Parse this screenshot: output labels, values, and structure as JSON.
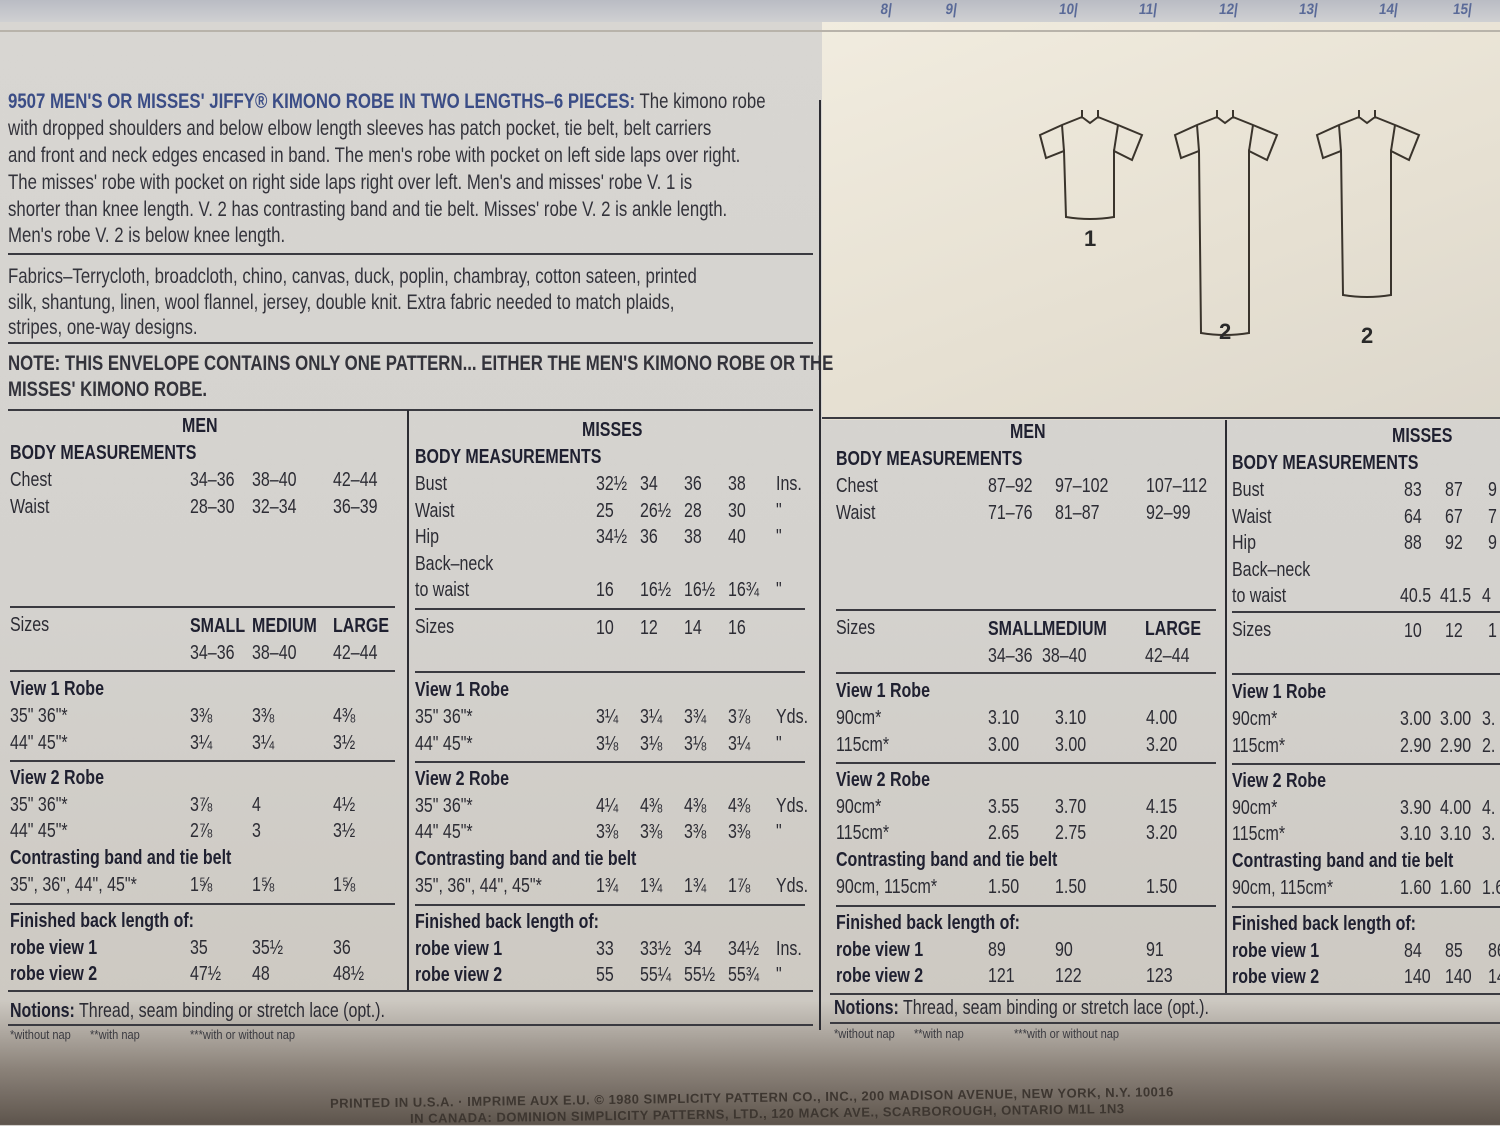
{
  "ruler": [
    "8",
    "9",
    "10",
    "11",
    "12",
    "13",
    "14",
    "15"
  ],
  "description": {
    "title": "9507 MEN'S OR MISSES' JIFFY® KIMONO ROBE IN TWO LENGTHS–6 PIECES:",
    "lines": [
      " The kimono robe",
      "with dropped shoulders and below elbow length sleeves has patch pocket, tie belt, belt carriers",
      "and front and neck edges encased in band. The men's robe with pocket on left side laps over right.",
      "The misses' robe with pocket on right side laps right over left. Men's and misses' robe V. 1 is",
      "shorter than knee length. V. 2 has contrasting band and tie belt. Misses' robe V. 2 is ankle length.",
      "Men's robe V. 2 is below knee length."
    ]
  },
  "fabrics": {
    "lines": [
      "Fabrics–Terrycloth, broadcloth, chino, canvas, duck, poplin, chambray, cotton sateen, printed",
      "silk, shantung, linen, wool flannel, jersey, double knit. Extra fabric needed to match plaids,",
      "stripes, one-way designs."
    ]
  },
  "note": {
    "lines": [
      "NOTE: THIS ENVELOPE CONTAINS ONLY ONE PATTERN... EITHER THE MEN'S KIMONO ROBE OR THE",
      "MISSES' KIMONO ROBE."
    ]
  },
  "views": [
    {
      "label": "1",
      "type": "short"
    },
    {
      "label": "2",
      "type": "long"
    },
    {
      "label": "2",
      "type": "ankle"
    }
  ],
  "tables": {
    "men_in": {
      "title": "MEN",
      "body": {
        "heading": "BODY MEASUREMENTS",
        "rows": [
          {
            "label": "Chest",
            "values": [
              "34–36",
              "38–40",
              "42–44"
            ]
          },
          {
            "label": "Waist",
            "values": [
              "28–30",
              "32–34",
              "36–39"
            ]
          }
        ]
      },
      "sizes": {
        "label": "Sizes",
        "rows": [
          [
            "SMALL",
            "MEDIUM",
            "LARGE"
          ],
          [
            "34–36",
            "38–40",
            "42–44"
          ]
        ]
      },
      "view1": {
        "heading": "View 1 Robe",
        "rows": [
          {
            "label": "35\" 36\"*",
            "values": [
              "3⅜",
              "3⅜",
              "4⅜"
            ]
          },
          {
            "label": "44\" 45\"*",
            "values": [
              "3¼",
              "3¼",
              "3½"
            ]
          }
        ]
      },
      "view2": {
        "heading": "View 2 Robe",
        "rows": [
          {
            "label": "35\" 36\"*",
            "values": [
              "3⅞",
              "4",
              "4½"
            ]
          },
          {
            "label": "44\" 45\"*",
            "values": [
              "2⅞",
              "3",
              "3½"
            ]
          }
        ]
      },
      "band": {
        "heading": "Contrasting band and tie belt",
        "rows": [
          {
            "label": "35\", 36\", 44\", 45\"*",
            "values": [
              "1⅝",
              "1⅝",
              "1⅝"
            ]
          }
        ]
      },
      "finished": {
        "heading": "Finished back length of:",
        "rows": [
          {
            "label": "robe view 1",
            "values": [
              "35",
              "35½",
              "36"
            ]
          },
          {
            "label": "robe view 2",
            "values": [
              "47½",
              "48",
              "48½"
            ]
          }
        ]
      }
    },
    "misses_in": {
      "title": "MISSES",
      "body": {
        "heading": "BODY MEASUREMENTS",
        "rows": [
          {
            "label": "Bust",
            "values": [
              "32½",
              "34",
              "36",
              "38"
            ],
            "unit": "Ins."
          },
          {
            "label": "Waist",
            "values": [
              "25",
              "26½",
              "28",
              "30"
            ],
            "unit": "\""
          },
          {
            "label": "Hip",
            "values": [
              "34½",
              "36",
              "38",
              "40"
            ],
            "unit": "\""
          },
          {
            "label": "Back–neck",
            "values": []
          },
          {
            "label": "to waist",
            "values": [
              "16",
              "16½",
              "16½",
              "16¾"
            ],
            "unit": "\""
          }
        ]
      },
      "sizes": {
        "label": "Sizes",
        "rows": [
          [
            "10",
            "12",
            "14",
            "16"
          ]
        ]
      },
      "view1": {
        "heading": "View 1 Robe",
        "rows": [
          {
            "label": "35\" 36\"*",
            "values": [
              "3¼",
              "3¼",
              "3¾",
              "3⅞"
            ],
            "unit": "Yds."
          },
          {
            "label": "44\" 45\"*",
            "values": [
              "3⅛",
              "3⅛",
              "3⅛",
              "3¼"
            ],
            "unit": "\""
          }
        ]
      },
      "view2": {
        "heading": "View 2 Robe",
        "rows": [
          {
            "label": "35\" 36\"*",
            "values": [
              "4¼",
              "4⅜",
              "4⅜",
              "4⅜"
            ],
            "unit": "Yds."
          },
          {
            "label": "44\" 45\"*",
            "values": [
              "3⅜",
              "3⅜",
              "3⅜",
              "3⅜"
            ],
            "unit": "\""
          }
        ]
      },
      "band": {
        "heading": "Contrasting band and tie belt",
        "rows": [
          {
            "label": "35\", 36\", 44\", 45\"*",
            "values": [
              "1¾",
              "1¾",
              "1¾",
              "1⅞"
            ],
            "unit": "Yds."
          }
        ]
      },
      "finished": {
        "heading": "Finished back length of:",
        "rows": [
          {
            "label": "robe view 1",
            "values": [
              "33",
              "33½",
              "34",
              "34½"
            ],
            "unit": "Ins."
          },
          {
            "label": "robe view 2",
            "values": [
              "55",
              "55¼",
              "55½",
              "55¾"
            ],
            "unit": "\""
          }
        ]
      }
    },
    "men_cm": {
      "title": "MEN",
      "body": {
        "heading": "BODY MEASUREMENTS",
        "rows": [
          {
            "label": "Chest",
            "values": [
              "87–92",
              "97–102",
              "107–112"
            ]
          },
          {
            "label": "Waist",
            "values": [
              "71–76",
              "81–87",
              "92–99"
            ]
          }
        ]
      },
      "sizes": {
        "label": "Sizes",
        "rows": [
          [
            "SMALL",
            "MEDIUM",
            "LARGE"
          ],
          [
            "34–36",
            "38–40",
            "42–44"
          ]
        ]
      },
      "view1": {
        "heading": "View 1 Robe",
        "rows": [
          {
            "label": "90cm*",
            "values": [
              "3.10",
              "3.10",
              "4.00"
            ]
          },
          {
            "label": "115cm*",
            "values": [
              "3.00",
              "3.00",
              "3.20"
            ]
          }
        ]
      },
      "view2": {
        "heading": "View 2 Robe",
        "rows": [
          {
            "label": "90cm*",
            "values": [
              "3.55",
              "3.70",
              "4.15"
            ]
          },
          {
            "label": "115cm*",
            "values": [
              "2.65",
              "2.75",
              "3.20"
            ]
          }
        ]
      },
      "band": {
        "heading": "Contrasting band and tie belt",
        "rows": [
          {
            "label": "90cm, 115cm*",
            "values": [
              "1.50",
              "1.50",
              "1.50"
            ]
          }
        ]
      },
      "finished": {
        "heading": "Finished back length of:",
        "rows": [
          {
            "label": "robe view 1",
            "values": [
              "89",
              "90",
              "91"
            ]
          },
          {
            "label": "robe view 2",
            "values": [
              "121",
              "122",
              "123"
            ]
          }
        ]
      }
    },
    "misses_cm": {
      "title": "MISSES",
      "body": {
        "heading": "BODY MEASUREMENTS",
        "rows": [
          {
            "label": "Bust",
            "values": [
              "83",
              "87",
              "9"
            ]
          },
          {
            "label": "Waist",
            "values": [
              "64",
              "67",
              "7"
            ]
          },
          {
            "label": "Hip",
            "values": [
              "88",
              "92",
              "9"
            ]
          },
          {
            "label": "Back–neck",
            "values": []
          },
          {
            "label": "to waist",
            "values": [
              "40.5",
              "41.5",
              "4"
            ]
          }
        ]
      },
      "sizes": {
        "label": "Sizes",
        "rows": [
          [
            "10",
            "12",
            "1"
          ]
        ]
      },
      "view1": {
        "heading": "View 1 Robe",
        "rows": [
          {
            "label": "90cm*",
            "values": [
              "3.00",
              "3.00",
              "3."
            ]
          },
          {
            "label": "115cm*",
            "values": [
              "2.90",
              "2.90",
              "2."
            ]
          }
        ]
      },
      "view2": {
        "heading": "View 2 Robe",
        "rows": [
          {
            "label": "90cm*",
            "values": [
              "3.90",
              "4.00",
              "4."
            ]
          },
          {
            "label": "115cm*",
            "values": [
              "3.10",
              "3.10",
              "3."
            ]
          }
        ]
      },
      "band": {
        "heading": "Contrasting band and tie belt",
        "rows": [
          {
            "label": "90cm, 115cm*",
            "values": [
              "1.60",
              "1.60",
              "1.6"
            ]
          }
        ]
      },
      "finished": {
        "heading": "Finished back length of:",
        "rows": [
          {
            "label": "robe view 1",
            "values": [
              "84",
              "85",
              "86"
            ]
          },
          {
            "label": "robe view 2",
            "values": [
              "140",
              "140",
              "14"
            ]
          }
        ]
      }
    }
  },
  "notions": {
    "left": {
      "label": "Notions:",
      "text": " Thread, seam binding or stretch lace (opt.)."
    },
    "right": {
      "label": "Notions:",
      "text": " Thread, seam binding or stretch lace (opt.)."
    }
  },
  "footnotes": [
    "*without nap",
    "**with nap",
    "***with or without nap"
  ],
  "imprint": [
    "PRINTED IN U.S.A. · IMPRIME AUX E.U. © 1980 SIMPLICITY PATTERN CO., INC., 200 MADISON AVENUE, NEW YORK, N.Y. 10016",
    "IN CANADA: DOMINION SIMPLICITY PATTERNS, LTD., 120 MACK AVE., SCARBOROUGH, ONTARIO M1L 1N3"
  ],
  "colors": {
    "title_blue": "#3b4d86",
    "ink": "#2c2c34",
    "paper": "#d8d6d2"
  }
}
